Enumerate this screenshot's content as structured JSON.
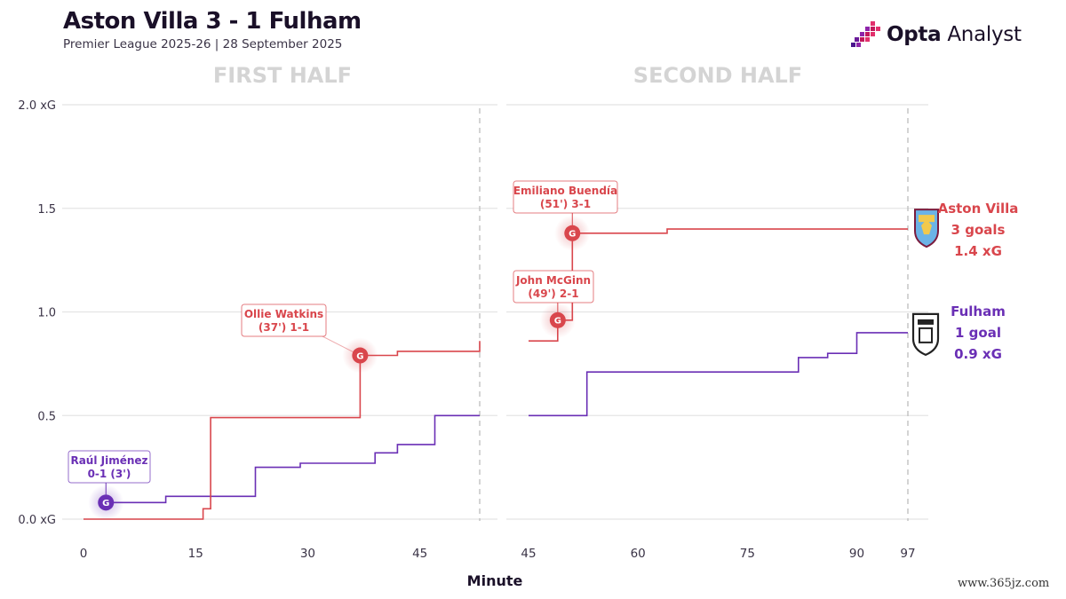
{
  "header": {
    "title": "Aston Villa 3 - 1 Fulham",
    "subtitle": "Premier League 2025-26 | 28 September 2025",
    "brand_bold": "Opta",
    "brand_light": " Analyst"
  },
  "watermark": "www.365jz.com",
  "colors": {
    "villa": "#d9464c",
    "fulham": "#6a2fb5",
    "grid": "#e4e4e4",
    "half_title": "#d4d4d4"
  },
  "chart_data": {
    "type": "line",
    "title": "Aston Villa 3 - 1 Fulham",
    "xlabel": "Minute",
    "ylabel": "xG",
    "ylim": [
      0,
      2.0
    ],
    "y_ticks": [
      {
        "value": 0.0,
        "label": "0.0 xG"
      },
      {
        "value": 0.5,
        "label": "0.5"
      },
      {
        "value": 1.0,
        "label": "1.0"
      },
      {
        "value": 1.5,
        "label": "1.5"
      },
      {
        "value": 2.0,
        "label": "2.0 xG"
      }
    ],
    "panels": [
      {
        "name": "FIRST HALF",
        "xlim": [
          0,
          53
        ],
        "x_ticks": [
          "0",
          "15",
          "30",
          "45"
        ],
        "x_tick_values": [
          0,
          15,
          30,
          45
        ],
        "end_minute": 53,
        "series": [
          {
            "name": "Aston Villa",
            "points": [
              [
                0,
                0.0
              ],
              [
                16,
                0.0
              ],
              [
                16,
                0.05
              ],
              [
                17,
                0.05
              ],
              [
                17,
                0.49
              ],
              [
                34,
                0.49
              ],
              [
                34,
                0.49
              ],
              [
                37,
                0.49
              ],
              [
                37,
                0.79
              ],
              [
                42,
                0.79
              ],
              [
                42,
                0.81
              ],
              [
                53,
                0.81
              ],
              [
                53,
                0.86
              ]
            ]
          },
          {
            "name": "Fulham",
            "points": [
              [
                3,
                0.08
              ],
              [
                11,
                0.08
              ],
              [
                11,
                0.11
              ],
              [
                23,
                0.11
              ],
              [
                23,
                0.25
              ],
              [
                29,
                0.25
              ],
              [
                29,
                0.27
              ],
              [
                39,
                0.27
              ],
              [
                39,
                0.32
              ],
              [
                42,
                0.32
              ],
              [
                42,
                0.36
              ],
              [
                47,
                0.36
              ],
              [
                47,
                0.5
              ],
              [
                53,
                0.5
              ]
            ]
          }
        ],
        "goals": [
          {
            "team": "Fulham",
            "minute": 3,
            "xg": 0.08,
            "marker": "G",
            "label_line1": "Raúl Jiménez",
            "label_line2": "0-1 (3')"
          },
          {
            "team": "Aston Villa",
            "minute": 37,
            "xg": 0.79,
            "marker": "G",
            "label_line1": "Ollie Watkins",
            "label_line2": "(37') 1-1"
          }
        ]
      },
      {
        "name": "SECOND HALF",
        "xlim": [
          45,
          97
        ],
        "x_ticks": [
          "45",
          "60",
          "75",
          "90",
          "97"
        ],
        "x_tick_values": [
          45,
          60,
          75,
          90,
          97
        ],
        "end_minute": 97,
        "series": [
          {
            "name": "Aston Villa",
            "points": [
              [
                45,
                0.86
              ],
              [
                49,
                0.86
              ],
              [
                49,
                0.96
              ],
              [
                51,
                0.96
              ],
              [
                51,
                1.38
              ],
              [
                64,
                1.38
              ],
              [
                64,
                1.4
              ],
              [
                97,
                1.4
              ]
            ]
          },
          {
            "name": "Fulham",
            "points": [
              [
                45,
                0.5
              ],
              [
                53,
                0.5
              ],
              [
                53,
                0.71
              ],
              [
                82,
                0.71
              ],
              [
                82,
                0.78
              ],
              [
                86,
                0.78
              ],
              [
                86,
                0.8
              ],
              [
                90,
                0.8
              ],
              [
                90,
                0.9
              ],
              [
                97,
                0.9
              ]
            ]
          }
        ],
        "goals": [
          {
            "team": "Aston Villa",
            "minute": 49,
            "xg": 0.96,
            "marker": "G",
            "label_line1": "John McGinn",
            "label_line2": "(49') 2-1"
          },
          {
            "team": "Aston Villa",
            "minute": 51,
            "xg": 1.38,
            "marker": "G",
            "label_line1": "Emiliano Buendía",
            "label_line2": "(51') 3-1"
          }
        ]
      }
    ],
    "teams": [
      {
        "name": "Aston Villa",
        "goals": "3 goals",
        "xg": "1.4 xG",
        "final_xg": 1.4
      },
      {
        "name": "Fulham",
        "goals": "1 goal",
        "xg": "0.9 xG",
        "final_xg": 0.9
      }
    ]
  }
}
